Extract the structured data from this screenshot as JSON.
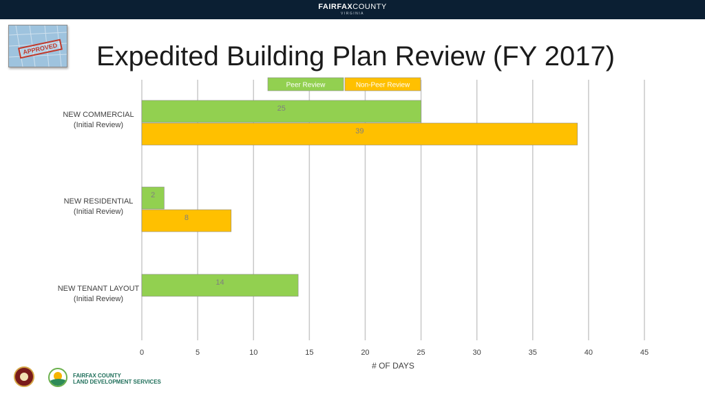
{
  "header": {
    "county_bold": "FAIRFAX",
    "county_rest": "COUNTY",
    "county_sub": "VIRGINIA"
  },
  "thumbnail": {
    "stamp_text": "APPROVED"
  },
  "slide_title": "Expedited Building Plan Review (FY 2017)",
  "footer": {
    "lds_line1": "FAIRFAX COUNTY",
    "lds_line2": "LAND DEVELOPMENT SERVICES"
  },
  "colors": {
    "peer": "#92d050",
    "nonpeer": "#ffc000",
    "grid": "#c8c8c8",
    "header_bg": "#0b1f33"
  },
  "chart_data": {
    "type": "bar",
    "orientation": "horizontal",
    "categories": [
      [
        "NEW COMMERCIAL",
        "(Initial Review)"
      ],
      [
        "NEW RESIDENTIAL",
        "(Initial Review)"
      ],
      [
        "NEW TENANT LAYOUT",
        "(Initial Review)"
      ]
    ],
    "series": [
      {
        "name": "Peer Review",
        "values": [
          25,
          2,
          14
        ]
      },
      {
        "name": "Non-Peer Review",
        "values": [
          39,
          8,
          null
        ]
      }
    ],
    "xlabel": "# OF DAYS",
    "xlim": [
      0,
      45
    ],
    "xticks": [
      0,
      5,
      10,
      15,
      20,
      25,
      30,
      35,
      40,
      45
    ],
    "grid": true,
    "legend": "top"
  }
}
